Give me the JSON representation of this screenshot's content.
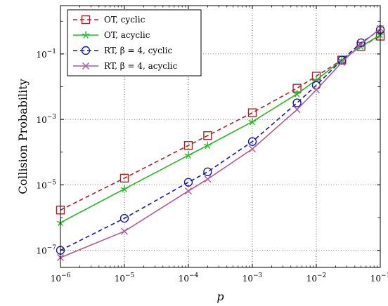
{
  "chart_data": {
    "type": "line",
    "xlabel": "p",
    "ylabel": "Collision Probability",
    "xscale": "log",
    "yscale": "log",
    "xlim": [
      1e-06,
      0.1
    ],
    "ylim": [
      3e-08,
      3
    ],
    "grid": true,
    "legend_position": "top-left",
    "x_tick_labels": [
      "10^-6",
      "10^-5",
      "10^-4",
      "10^-3",
      "10^-2",
      "10^-1"
    ],
    "y_tick_labels": [
      "10^-7",
      "10^-5",
      "10^-3",
      "10^-1"
    ],
    "x": [
      1e-06,
      1e-05,
      0.0001,
      0.0002,
      0.001,
      0.005,
      0.01,
      0.025,
      0.05,
      0.1
    ],
    "series": [
      {
        "name": "OT, cyclic",
        "color": "#b22222",
        "dash": "dashed",
        "marker": "square",
        "y": [
          1.7e-06,
          1.6e-05,
          0.00016,
          0.00032,
          0.0016,
          0.009,
          0.021,
          0.065,
          0.17,
          0.35
        ]
      },
      {
        "name": "OT, acyclic",
        "color": "#22bb22",
        "dash": "solid",
        "marker": "star",
        "y": [
          7e-07,
          7.5e-06,
          8e-05,
          0.00016,
          0.00085,
          0.006,
          0.016,
          0.065,
          0.17,
          0.38
        ]
      },
      {
        "name": "RT, β = 4, cyclic",
        "color": "#1a1aaa",
        "dash": "dashed",
        "marker": "circle",
        "y": [
          1e-07,
          9.5e-07,
          1.2e-05,
          2.5e-05,
          0.00021,
          0.0032,
          0.011,
          0.065,
          0.22,
          0.55
        ]
      },
      {
        "name": "RT, β = 4, acyclic",
        "color": "#b05a96",
        "dash": "solid",
        "marker": "x",
        "y": [
          6e-08,
          3.8e-07,
          6.5e-06,
          1.5e-05,
          0.000125,
          0.002,
          0.008,
          0.055,
          0.2,
          0.6
        ]
      }
    ]
  }
}
